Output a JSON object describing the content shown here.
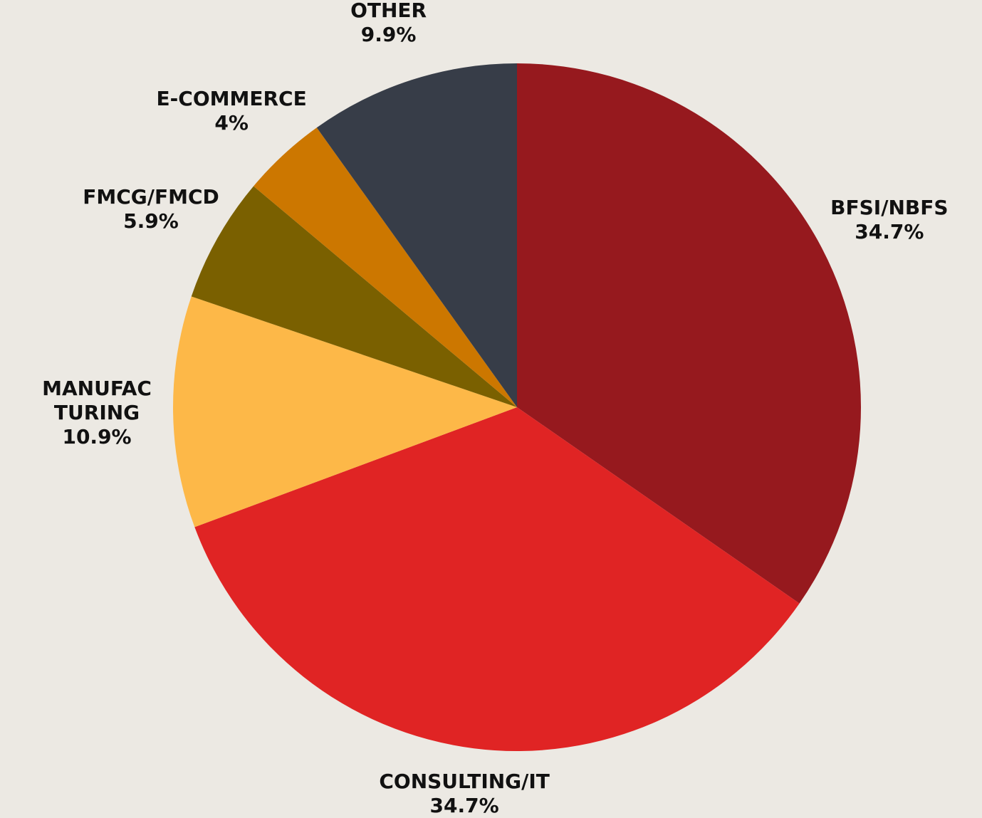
{
  "chart_data": {
    "type": "pie",
    "categories": [
      "BFSI/NBFS",
      "CONSULTING/IT",
      "MANUFAC\nTURING",
      "FMCG/FMCD",
      "E-COMMERCE",
      "OTHER"
    ],
    "values": [
      34.7,
      34.7,
      10.9,
      5.9,
      4,
      9.9
    ],
    "value_labels": [
      "34.7%",
      "34.7%",
      "10.9%",
      "5.9%",
      "4%",
      "9.9%"
    ],
    "colors": [
      "#96191e",
      "#e02424",
      "#fdb848",
      "#7a6000",
      "#cc7700",
      "#373d48"
    ]
  }
}
